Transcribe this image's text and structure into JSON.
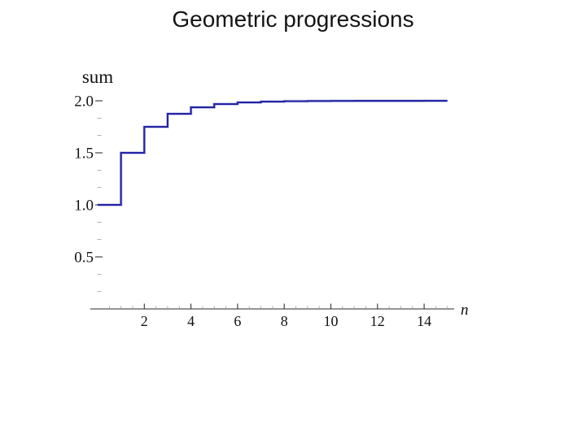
{
  "title": "Geometric progressions",
  "chart_data": {
    "type": "step",
    "title": "Geometric progressions",
    "xlabel": "n",
    "ylabel": "sum",
    "x": [
      1,
      2,
      3,
      4,
      5,
      6,
      7,
      8,
      9,
      10,
      11,
      12,
      13,
      14,
      15
    ],
    "y": [
      1,
      1.5,
      1.75,
      1.875,
      1.9375,
      1.96875,
      1.984375,
      1.9921875,
      1.99609375,
      1.998046875,
      1.9990234375,
      1.99951171875,
      1.999755859375,
      1.9998779296875,
      1.99993896484375
    ],
    "x_tick_values": [
      2,
      4,
      6,
      8,
      10,
      12,
      14
    ],
    "x_tick_labels": [
      "2",
      "4",
      "6",
      "8",
      "10",
      "12",
      "14"
    ],
    "y_tick_values": [
      0.5,
      1.0,
      1.5,
      2.0
    ],
    "y_tick_labels": [
      "0.5",
      "1.0",
      "1.5",
      "2.0"
    ],
    "xlim": [
      0,
      15.5
    ],
    "ylim": [
      0,
      2.05
    ],
    "grid": "off",
    "legend": "none",
    "line_color": "#2323A4",
    "line_halo_color": "#9F9FD8",
    "axis_color": "#555555",
    "tick_color": "#333333",
    "minor_tick_color": "#999999",
    "label_color": "#111111"
  }
}
